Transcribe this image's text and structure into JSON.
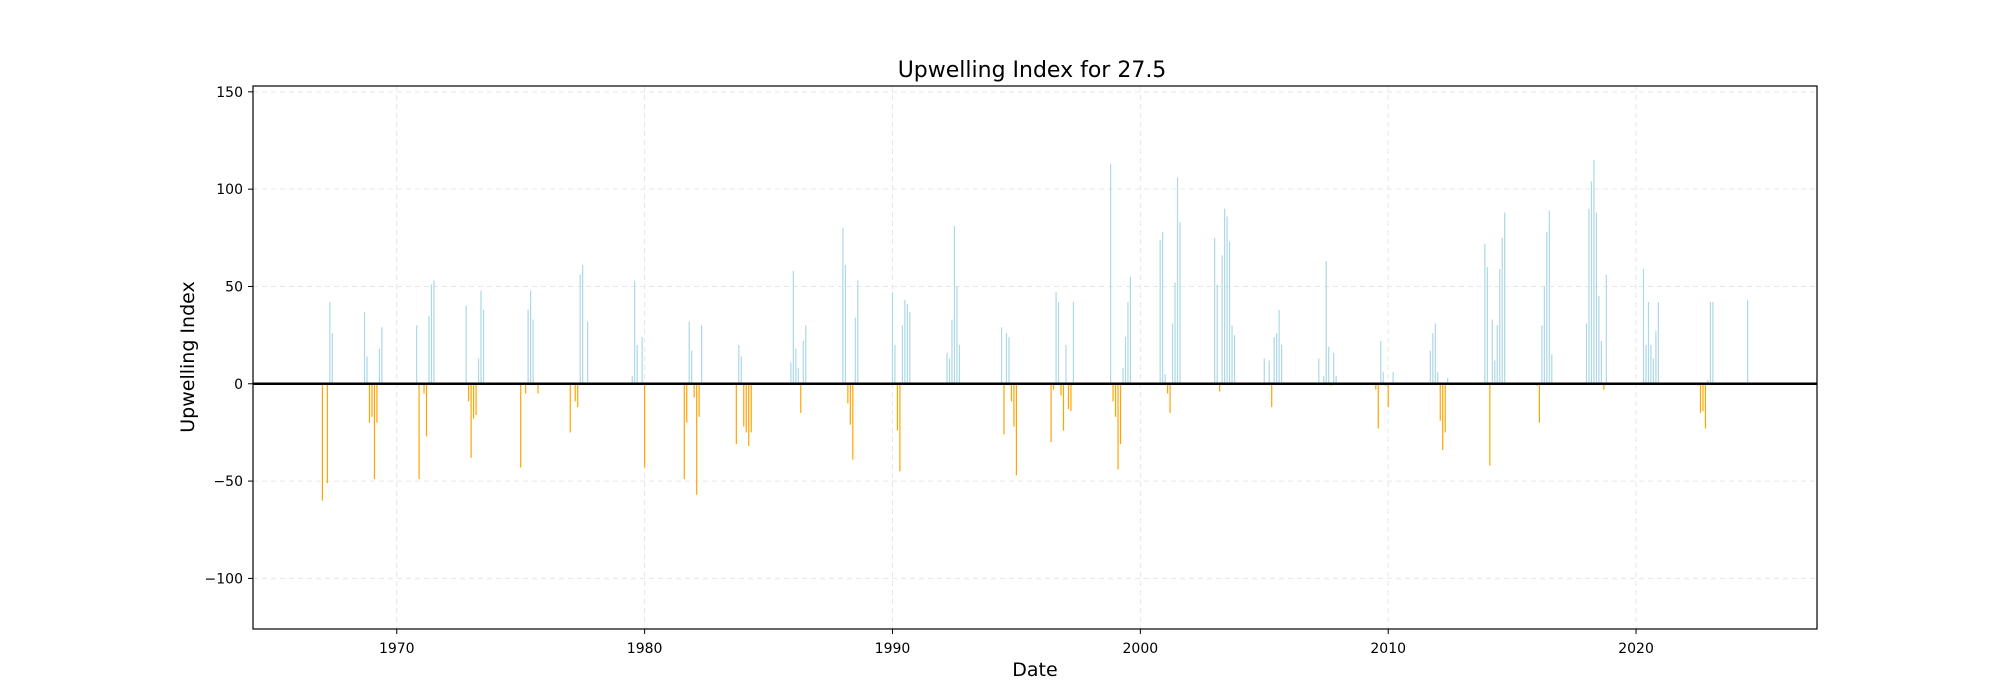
{
  "chart_data": {
    "type": "bar",
    "title": "Upwelling Index for 27.5",
    "xlabel": "Date",
    "ylabel": "Upwelling Index",
    "xlim": [
      1964.2,
      2027.3
    ],
    "ylim": [
      -126,
      153
    ],
    "x_ticks": [
      1970,
      1980,
      1990,
      2000,
      2010,
      2020
    ],
    "y_ticks": [
      -100,
      -50,
      0,
      50,
      100,
      150
    ],
    "grid": true,
    "zero_line": true,
    "colors": {
      "positive": "#add8e6",
      "negative": "#ffa500",
      "zero_line": "#000000",
      "grid": "#e6e6e6"
    },
    "series": [
      {
        "x": [
          1967.0,
          1967.2,
          1967.3,
          1967.4,
          1968.7,
          1968.8,
          1968.9,
          1969.0,
          1969.1,
          1969.2,
          1969.3,
          1969.4,
          1970.8,
          1970.9,
          1971.1,
          1971.2,
          1971.3,
          1971.4,
          1971.5,
          1972.8,
          1972.9,
          1973.0,
          1973.1,
          1973.2,
          1973.3,
          1973.4,
          1973.5,
          1975.0,
          1975.2,
          1975.3,
          1975.4,
          1975.5,
          1975.7,
          1977.0,
          1977.2,
          1977.3,
          1977.4,
          1977.5,
          1977.7,
          1979.5,
          1979.6,
          1979.7,
          1979.9,
          1980.0,
          1981.6,
          1981.7,
          1981.8,
          1981.9,
          1982.0,
          1982.1,
          1982.2,
          1982.3,
          1983.7,
          1983.8,
          1983.9,
          1984.0,
          1984.1,
          1984.2,
          1984.3,
          1985.9,
          1986.0,
          1986.1,
          1986.2,
          1986.3,
          1986.4,
          1986.5,
          1988.0,
          1988.1,
          1988.2,
          1988.3,
          1988.4,
          1988.5,
          1988.6,
          1990.0,
          1990.1,
          1990.2,
          1990.3,
          1990.4,
          1990.5,
          1990.6,
          1990.7,
          1992.2,
          1992.3,
          1992.4,
          1992.5,
          1992.6,
          1992.7,
          1994.4,
          1994.5,
          1994.6,
          1994.7,
          1994.8,
          1994.9,
          1995.0,
          1996.4,
          1996.5,
          1996.6,
          1996.7,
          1996.8,
          1996.9,
          1997.0,
          1997.1,
          1997.2,
          1997.3,
          1998.8,
          1998.9,
          1999.0,
          1999.1,
          1999.2,
          1999.3,
          1999.4,
          1999.5,
          1999.6,
          2000.8,
          2000.9,
          2001.0,
          2001.1,
          2001.2,
          2001.3,
          2001.4,
          2001.5,
          2001.6,
          2003.0,
          2003.1,
          2003.2,
          2003.3,
          2003.4,
          2003.5,
          2003.6,
          2003.7,
          2003.8,
          2005.0,
          2005.2,
          2005.3,
          2005.4,
          2005.5,
          2005.6,
          2005.7,
          2007.2,
          2007.4,
          2007.5,
          2007.6,
          2007.7,
          2007.8,
          2007.9,
          2009.5,
          2009.6,
          2009.7,
          2009.8,
          2009.9,
          2010.0,
          2010.2,
          2011.7,
          2011.8,
          2011.9,
          2012.0,
          2012.1,
          2012.2,
          2012.3,
          2012.4,
          2013.9,
          2014.0,
          2014.1,
          2014.2,
          2014.3,
          2014.4,
          2014.5,
          2014.6,
          2014.7,
          2016.0,
          2016.1,
          2016.2,
          2016.3,
          2016.4,
          2016.5,
          2016.6,
          2018.0,
          2018.1,
          2018.2,
          2018.3,
          2018.4,
          2018.5,
          2018.6,
          2018.7,
          2018.8,
          2020.3,
          2020.4,
          2020.5,
          2020.6,
          2020.7,
          2020.8,
          2020.9,
          2022.5,
          2022.6,
          2022.7,
          2022.8,
          2022.9,
          2023.0,
          2023.1,
          2024.5
        ],
        "values": [
          -60,
          -51,
          42,
          26,
          37,
          14,
          -20,
          -17,
          -49,
          -20,
          18,
          29,
          30,
          -49,
          -5,
          -27,
          35,
          51,
          53,
          40,
          -9,
          -38,
          -18,
          -16,
          13,
          48,
          38,
          -43,
          -5,
          38,
          48,
          33,
          -5,
          -25,
          -9,
          -12,
          56,
          61,
          32,
          4,
          53,
          20,
          24,
          -43,
          -49,
          -20,
          32,
          17,
          -7,
          -57,
          -17,
          30,
          -31,
          20,
          14,
          -22,
          -25,
          -32,
          -25,
          11,
          58,
          18,
          8,
          -15,
          22,
          30,
          80,
          61,
          -10,
          -21,
          -39,
          34,
          53,
          47,
          20,
          -24,
          -45,
          30,
          43,
          41,
          37,
          16,
          13,
          33,
          81,
          50,
          20,
          29,
          -26,
          26,
          24,
          -9,
          -22,
          -47,
          -30,
          -3,
          47,
          42,
          -6,
          -24,
          20,
          -13,
          -14,
          42,
          113,
          -9,
          -17,
          -44,
          -31,
          8,
          24,
          42,
          55,
          74,
          78,
          5,
          -5,
          -15,
          31,
          52,
          106,
          83,
          75,
          51,
          -4,
          66,
          90,
          86,
          73,
          30,
          25,
          13,
          12,
          -12,
          24,
          26,
          38,
          20,
          13,
          4,
          63,
          19,
          -1,
          16,
          4,
          -3,
          -23,
          22,
          6,
          -1,
          -12,
          6,
          17,
          26,
          31,
          6,
          -19,
          -34,
          -25,
          3,
          72,
          60,
          -42,
          33,
          12,
          30,
          59,
          75,
          88,
          -1,
          -20,
          30,
          50,
          78,
          89,
          15,
          31,
          90,
          104,
          115,
          88,
          45,
          22,
          -3,
          56,
          59,
          20,
          42,
          20,
          13,
          27,
          42,
          -1,
          -15,
          -14,
          -23,
          2,
          42,
          42,
          43
        ]
      }
    ]
  }
}
